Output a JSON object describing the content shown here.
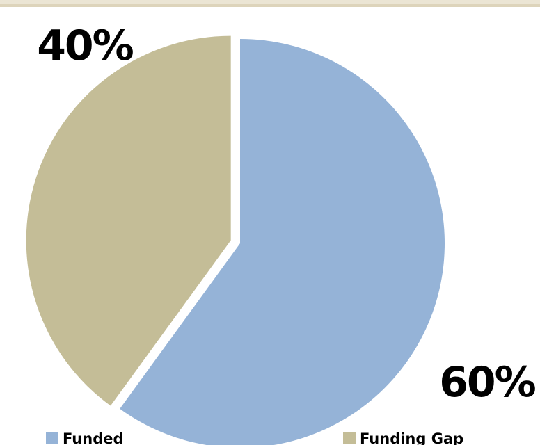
{
  "chart_data": {
    "type": "pie",
    "title": "",
    "categories": [
      "Funded",
      "Funding Gap"
    ],
    "values": [
      60,
      40
    ],
    "data_labels": [
      "60%",
      "40%"
    ],
    "colors": [
      "#95b3d7",
      "#c4bd97"
    ],
    "legend": {
      "placement": "bottom",
      "entries": [
        "Funded",
        "Funding Gap"
      ]
    },
    "exploded_slice": "Funding Gap"
  }
}
